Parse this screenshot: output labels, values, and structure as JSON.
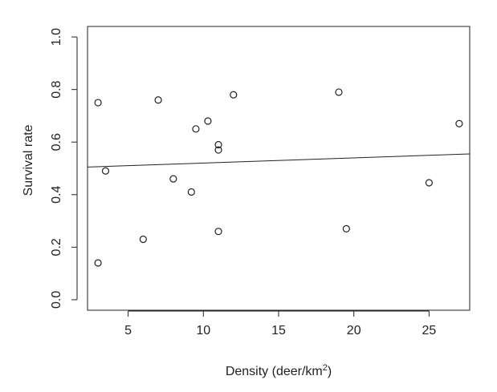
{
  "chart_data": {
    "type": "scatter",
    "title": "",
    "xlabel": "Density (deer/km",
    "xlabel_superscript": "2",
    "xlabel_suffix": ")",
    "ylabel": "Survival rate",
    "xlim": [
      2.3,
      27.7
    ],
    "ylim": [
      -0.04,
      1.04
    ],
    "xticks": [
      5,
      10,
      15,
      20,
      25
    ],
    "yticks": [
      0.0,
      0.2,
      0.4,
      0.6,
      0.8,
      1.0
    ],
    "ytick_labels": [
      "0.0",
      "0.2",
      "0.4",
      "0.6",
      "0.8",
      "1.0"
    ],
    "grid": false,
    "points": [
      {
        "x": 3.0,
        "y": 0.75
      },
      {
        "x": 3.0,
        "y": 0.14
      },
      {
        "x": 3.5,
        "y": 0.49
      },
      {
        "x": 6.0,
        "y": 0.23
      },
      {
        "x": 7.0,
        "y": 0.76
      },
      {
        "x": 8.0,
        "y": 0.46
      },
      {
        "x": 9.2,
        "y": 0.41
      },
      {
        "x": 9.5,
        "y": 0.65
      },
      {
        "x": 10.3,
        "y": 0.68
      },
      {
        "x": 11.0,
        "y": 0.59
      },
      {
        "x": 11.0,
        "y": 0.57
      },
      {
        "x": 11.0,
        "y": 0.26
      },
      {
        "x": 12.0,
        "y": 0.78
      },
      {
        "x": 19.0,
        "y": 0.79
      },
      {
        "x": 19.5,
        "y": 0.27
      },
      {
        "x": 25.0,
        "y": 0.445
      },
      {
        "x": 27.0,
        "y": 0.67
      }
    ],
    "fit_line": {
      "x1": 2.3,
      "y1": 0.505,
      "x2": 27.7,
      "y2": 0.555
    }
  }
}
